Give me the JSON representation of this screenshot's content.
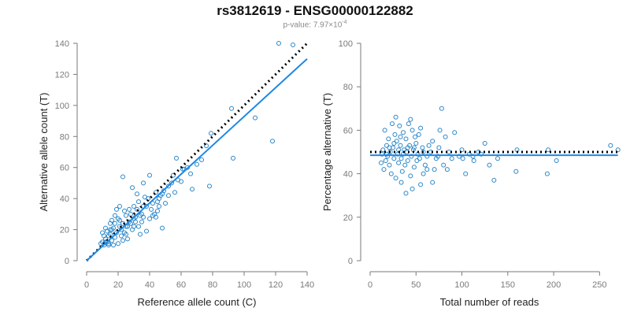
{
  "header": {
    "title": "rs3812619 - ENSG00000122882",
    "pvalue_prefix": "p-value: 7.97×10",
    "pvalue_exp": "-4"
  },
  "colors": {
    "points": "#2a86c8",
    "fit": "#1e88e5",
    "reference": "#000000",
    "axis": "#7a7a7a"
  },
  "chart_data": [
    {
      "type": "scatter",
      "title": "",
      "xlabel": "Reference allele count (C)",
      "ylabel": "Alternative allele count (T)",
      "xlim": [
        0,
        140
      ],
      "ylim": [
        0,
        140
      ],
      "xticks": [
        0,
        20,
        40,
        60,
        80,
        100,
        120,
        140
      ],
      "yticks": [
        0,
        20,
        40,
        60,
        80,
        100,
        120,
        140
      ],
      "lines": [
        {
          "kind": "dotted-reference",
          "x": [
            0,
            140
          ],
          "y": [
            0,
            140
          ]
        },
        {
          "kind": "fit",
          "x": [
            0,
            140
          ],
          "y": [
            0,
            130
          ]
        }
      ],
      "points": [
        [
          122,
          140
        ],
        [
          131,
          139
        ],
        [
          118,
          77
        ],
        [
          107,
          92
        ],
        [
          92,
          98
        ],
        [
          93,
          66
        ],
        [
          79,
          82
        ],
        [
          76,
          74
        ],
        [
          78,
          48
        ],
        [
          73,
          65
        ],
        [
          67,
          46
        ],
        [
          64,
          60
        ],
        [
          61,
          59
        ],
        [
          57,
          66
        ],
        [
          58,
          52
        ],
        [
          55,
          55
        ],
        [
          54,
          50
        ],
        [
          60,
          51
        ],
        [
          52,
          48
        ],
        [
          49,
          45
        ],
        [
          48,
          43
        ],
        [
          47,
          42
        ],
        [
          44,
          44
        ],
        [
          45,
          38
        ],
        [
          50,
          37
        ],
        [
          46,
          35
        ],
        [
          43,
          30
        ],
        [
          41,
          33
        ],
        [
          39,
          40
        ],
        [
          40,
          55
        ],
        [
          37,
          41
        ],
        [
          36,
          35
        ],
        [
          35,
          30
        ],
        [
          33,
          38
        ],
        [
          32,
          33
        ],
        [
          31,
          28
        ],
        [
          30,
          35
        ],
        [
          29,
          47
        ],
        [
          28,
          30
        ],
        [
          27,
          25
        ],
        [
          26,
          22
        ],
        [
          25,
          29
        ],
        [
          24,
          32
        ],
        [
          23,
          54
        ],
        [
          23,
          24
        ],
        [
          22,
          20
        ],
        [
          21,
          26
        ],
        [
          20,
          27
        ],
        [
          19,
          33
        ],
        [
          19,
          18
        ],
        [
          18,
          15
        ],
        [
          18,
          29
        ],
        [
          17,
          21
        ],
        [
          16,
          20
        ],
        [
          16,
          13
        ],
        [
          15,
          17
        ],
        [
          15,
          24
        ],
        [
          14,
          16
        ],
        [
          14,
          11
        ],
        [
          13,
          19
        ],
        [
          13,
          12
        ],
        [
          12,
          14
        ],
        [
          12,
          21
        ],
        [
          11,
          10
        ],
        [
          11,
          16
        ],
        [
          10,
          12
        ],
        [
          10,
          18
        ],
        [
          9,
          11
        ],
        [
          21,
          35
        ],
        [
          22,
          16
        ],
        [
          24,
          18
        ],
        [
          25,
          22
        ],
        [
          26,
          14
        ],
        [
          27,
          33
        ],
        [
          28,
          24
        ],
        [
          29,
          20
        ],
        [
          30,
          27
        ],
        [
          31,
          25
        ],
        [
          33,
          22
        ],
        [
          34,
          29
        ],
        [
          35,
          25
        ],
        [
          36,
          28
        ],
        [
          38,
          35
        ],
        [
          40,
          27
        ],
        [
          42,
          29
        ],
        [
          44,
          28
        ],
        [
          46,
          40
        ],
        [
          48,
          21
        ],
        [
          38,
          19
        ],
        [
          34,
          17
        ],
        [
          20,
          11
        ],
        [
          17,
          10
        ],
        [
          14,
          10
        ],
        [
          12,
          12
        ],
        [
          16,
          26
        ],
        [
          18,
          24
        ],
        [
          21,
          22
        ],
        [
          23,
          13
        ],
        [
          25,
          17
        ],
        [
          30,
          22
        ],
        [
          32,
          43
        ],
        [
          36,
          50
        ],
        [
          45,
          32
        ],
        [
          52,
          42
        ],
        [
          56,
          44
        ],
        [
          62,
          59
        ],
        [
          70,
          62
        ],
        [
          66,
          56
        ],
        [
          42,
          37
        ],
        [
          15,
          20
        ]
      ]
    },
    {
      "type": "scatter",
      "title": "",
      "xlabel": "Total number of reads",
      "ylabel": "Percentage alternative (T)",
      "xlim": [
        0,
        260
      ],
      "ylim": [
        0,
        100
      ],
      "xticks": [
        0,
        50,
        100,
        150,
        200,
        250
      ],
      "yticks": [
        0,
        20,
        40,
        60,
        80,
        100
      ],
      "lines": [
        {
          "kind": "dotted-reference",
          "x": [
            0,
            270
          ],
          "y": [
            50,
            50
          ]
        },
        {
          "kind": "fit",
          "x": [
            0,
            270
          ],
          "y": [
            48.5,
            48.5
          ]
        }
      ],
      "points": [
        [
          262,
          53
        ],
        [
          270,
          51
        ],
        [
          194,
          51
        ],
        [
          203,
          46
        ],
        [
          193,
          40
        ],
        [
          160,
          51
        ],
        [
          159,
          41
        ],
        [
          139,
          47
        ],
        [
          135,
          37
        ],
        [
          130,
          44
        ],
        [
          125,
          54
        ],
        [
          121,
          49
        ],
        [
          118,
          50
        ],
        [
          113,
          46
        ],
        [
          112,
          48
        ],
        [
          108,
          49
        ],
        [
          104,
          40
        ],
        [
          101,
          47
        ],
        [
          100,
          51
        ],
        [
          97,
          48
        ],
        [
          92,
          59
        ],
        [
          89,
          47
        ],
        [
          86,
          50
        ],
        [
          84,
          42
        ],
        [
          80,
          44
        ],
        [
          78,
          70
        ],
        [
          76,
          60
        ],
        [
          75,
          52
        ],
        [
          72,
          47
        ],
        [
          70,
          42
        ],
        [
          68,
          55
        ],
        [
          66,
          50
        ],
        [
          64,
          53
        ],
        [
          62,
          48
        ],
        [
          60,
          44
        ],
        [
          58,
          40
        ],
        [
          57,
          52
        ],
        [
          55,
          61
        ],
        [
          53,
          58
        ],
        [
          52,
          49
        ],
        [
          51,
          46
        ],
        [
          50,
          54
        ],
        [
          49,
          57
        ],
        [
          48,
          43
        ],
        [
          47,
          51
        ],
        [
          46,
          60
        ],
        [
          45,
          48
        ],
        [
          44,
          39
        ],
        [
          43,
          53
        ],
        [
          42,
          63
        ],
        [
          41,
          46
        ],
        [
          40,
          50
        ],
        [
          39,
          56
        ],
        [
          38,
          44
        ],
        [
          37,
          51
        ],
        [
          36,
          59
        ],
        [
          35,
          41
        ],
        [
          34,
          47
        ],
        [
          33,
          53
        ],
        [
          32,
          62
        ],
        [
          31,
          45
        ],
        [
          30,
          49
        ],
        [
          29,
          55
        ],
        [
          28,
          38
        ],
        [
          27,
          58
        ],
        [
          26,
          47
        ],
        [
          25,
          52
        ],
        [
          24,
          63
        ],
        [
          23,
          40
        ],
        [
          22,
          50
        ],
        [
          21,
          44
        ],
        [
          20,
          56
        ],
        [
          19,
          48
        ],
        [
          18,
          53
        ],
        [
          17,
          46
        ],
        [
          16,
          60
        ],
        [
          15,
          42
        ],
        [
          14,
          51
        ],
        [
          13,
          49
        ],
        [
          12,
          45
        ],
        [
          28,
          66
        ],
        [
          34,
          36
        ],
        [
          39,
          31
        ],
        [
          46,
          33
        ],
        [
          55,
          35
        ],
        [
          62,
          42
        ],
        [
          68,
          36
        ],
        [
          74,
          48
        ],
        [
          82,
          57
        ],
        [
          54,
          47
        ],
        [
          48,
          52
        ],
        [
          41,
          52
        ],
        [
          36,
          49
        ],
        [
          31,
          51
        ],
        [
          26,
          54
        ],
        [
          21,
          52
        ],
        [
          18,
          49
        ],
        [
          33,
          57
        ],
        [
          44,
          65
        ],
        [
          58,
          50
        ]
      ]
    }
  ]
}
